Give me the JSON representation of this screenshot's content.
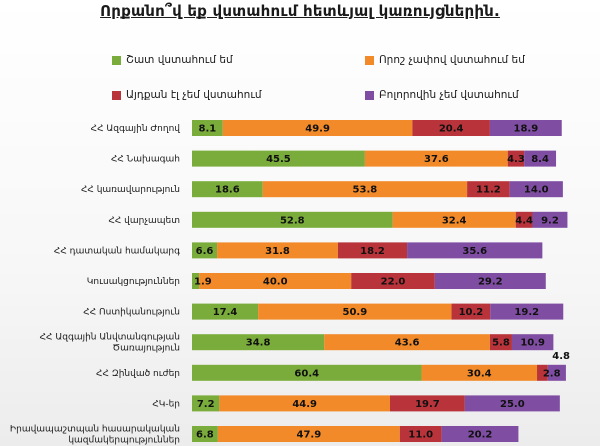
{
  "title": "Որքանո՞վ եք վստահում հետևյալ կառույցներին.",
  "chart_data": {
    "type": "bar",
    "orientation": "horizontal",
    "stacked": true,
    "categories": [
      "ՀՀ Ազգային Ժողով",
      "ՀՀ Նախագահ",
      "ՀՀ կառավարություն",
      "ՀՀ վարչապետ",
      "ՀՀ դատական համակարգ",
      "Կուսակցություններ",
      "ՀՀ Ոստիկանություն",
      "ՀՀ Ազգային Անվտանգության Ծառայություն",
      "ՀՀ Զինված ուժեր",
      "ՀԿ-եր",
      "Իրավապաշտպան հասարակական կազմակերպություններ"
    ],
    "category_lines": [
      [
        "ՀՀ Ազգային Ժողով"
      ],
      [
        "ՀՀ Նախագահ"
      ],
      [
        "ՀՀ կառավարություն"
      ],
      [
        "ՀՀ վարչապետ"
      ],
      [
        "ՀՀ դատական համակարգ"
      ],
      [
        "Կուսակցություններ"
      ],
      [
        "ՀՀ Ոստիկանություն"
      ],
      [
        "ՀՀ Ազգային Անվտանգության",
        "Ծառայություն"
      ],
      [
        "ՀՀ Զինված ուժեր"
      ],
      [
        "ՀԿ-եր"
      ],
      [
        "Իրավապաշտպան հասարակական",
        "կազմակերպություններ"
      ]
    ],
    "series": [
      {
        "name": "Շատ վստահում եմ",
        "color": "#7aac3b",
        "values": [
          8.1,
          45.5,
          18.6,
          52.8,
          6.6,
          1.9,
          17.4,
          34.8,
          60.4,
          7.2,
          6.8
        ]
      },
      {
        "name": "Որոշ չափով վստահում եմ",
        "color": "#f28a2a",
        "values": [
          49.9,
          37.6,
          53.8,
          32.4,
          31.8,
          40.0,
          50.9,
          43.6,
          30.4,
          44.9,
          47.9
        ]
      },
      {
        "name": "Այդքան էլ չեմ վստահում",
        "color": "#b8333a",
        "values": [
          20.4,
          4.3,
          11.2,
          4.4,
          18.2,
          22.0,
          10.2,
          5.8,
          2.8,
          19.7,
          11.0
        ]
      },
      {
        "name": "Բոլորովին չեմ վստահում",
        "color": "#7f4ea3",
        "values": [
          18.9,
          8.4,
          14.0,
          9.2,
          35.6,
          29.2,
          19.2,
          10.9,
          4.8,
          25.0,
          20.2
        ]
      }
    ],
    "value_labels": [
      [
        "8.1",
        "49.9",
        "20.4",
        "18.9"
      ],
      [
        "45.5",
        "37.6",
        "4.3",
        "8.4"
      ],
      [
        "18.6",
        "53.8",
        "11.2",
        "14.0"
      ],
      [
        "52.8",
        "32.4",
        "4.4",
        "9.2"
      ],
      [
        "6.6",
        "31.8",
        "18.2",
        "35.6"
      ],
      [
        "1.9",
        "40.0",
        "22.0",
        "29.2"
      ],
      [
        "17.4",
        "50.9",
        "10.2",
        "19.2"
      ],
      [
        "34.8",
        "43.6",
        "5.8",
        "10.9"
      ],
      [
        "60.4",
        "30.4",
        "2.8",
        "4.8"
      ],
      [
        "7.2",
        "44.9",
        "19.7",
        "25.0"
      ],
      [
        "6.8",
        "47.9",
        "11.0",
        "20.2"
      ]
    ],
    "xlim": [
      0,
      100
    ],
    "legend_position": "top",
    "grid": false
  }
}
